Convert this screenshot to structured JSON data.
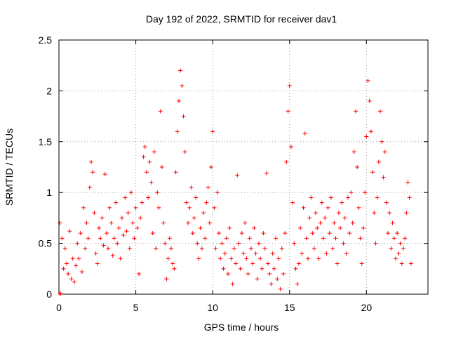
{
  "chart_data": {
    "type": "scatter",
    "title": "Day 192 of 2022, SRMTID for receiver dav1",
    "xlabel": "GPS time / hours",
    "ylabel": "SRMTID / TECUs",
    "xlim": [
      0,
      24
    ],
    "ylim": [
      0,
      2.5
    ],
    "xticks": [
      0,
      5,
      10,
      15,
      20
    ],
    "xtick_labels": [
      "0",
      "5",
      "10",
      "15",
      "20"
    ],
    "yticks": [
      0,
      0.5,
      1,
      1.5,
      2,
      2.5
    ],
    "ytick_labels": [
      "0",
      "0.5",
      "1",
      "1.5",
      "2",
      "2.5"
    ],
    "grid": true,
    "marker": "+",
    "color": "#ff0000",
    "series": [
      {
        "name": "dav1",
        "points": [
          [
            0.05,
            0.7
          ],
          [
            0.08,
            0.0
          ],
          [
            0.1,
            0.01
          ],
          [
            0.2,
            0.55
          ],
          [
            0.3,
            0.25
          ],
          [
            0.4,
            0.45
          ],
          [
            0.5,
            0.3
          ],
          [
            0.6,
            0.2
          ],
          [
            0.7,
            0.62
          ],
          [
            0.8,
            0.15
          ],
          [
            0.9,
            0.35
          ],
          [
            1.0,
            0.12
          ],
          [
            1.1,
            0.28
          ],
          [
            1.2,
            0.5
          ],
          [
            1.3,
            0.35
          ],
          [
            1.4,
            0.6
          ],
          [
            1.5,
            0.22
          ],
          [
            1.6,
            0.85
          ],
          [
            1.7,
            0.45
          ],
          [
            1.8,
            0.7
          ],
          [
            1.9,
            0.55
          ],
          [
            2.0,
            1.05
          ],
          [
            2.1,
            1.3
          ],
          [
            2.2,
            1.2
          ],
          [
            2.3,
            0.8
          ],
          [
            2.4,
            0.4
          ],
          [
            2.5,
            0.3
          ],
          [
            2.6,
            0.65
          ],
          [
            2.7,
            0.55
          ],
          [
            2.8,
            0.75
          ],
          [
            2.9,
            0.48
          ],
          [
            3.0,
            1.18
          ],
          [
            3.1,
            0.6
          ],
          [
            3.2,
            0.45
          ],
          [
            3.3,
            0.85
          ],
          [
            3.4,
            0.7
          ],
          [
            3.5,
            0.38
          ],
          [
            3.6,
            0.55
          ],
          [
            3.7,
            0.9
          ],
          [
            3.8,
            0.5
          ],
          [
            3.9,
            0.65
          ],
          [
            4.0,
            0.35
          ],
          [
            4.1,
            0.75
          ],
          [
            4.2,
            0.58
          ],
          [
            4.3,
            0.95
          ],
          [
            4.4,
            0.62
          ],
          [
            4.5,
            0.8
          ],
          [
            4.6,
            0.45
          ],
          [
            4.7,
            1.0
          ],
          [
            4.8,
            0.7
          ],
          [
            4.9,
            0.55
          ],
          [
            5.0,
            0.85
          ],
          [
            5.1,
            0.65
          ],
          [
            5.2,
            0.2
          ],
          [
            5.3,
            0.75
          ],
          [
            5.4,
            0.9
          ],
          [
            5.5,
            1.35
          ],
          [
            5.6,
            1.45
          ],
          [
            5.7,
            1.2
          ],
          [
            5.8,
            0.95
          ],
          [
            5.9,
            1.3
          ],
          [
            6.0,
            1.1
          ],
          [
            6.1,
            0.6
          ],
          [
            6.2,
            1.4
          ],
          [
            6.3,
            0.45
          ],
          [
            6.4,
            1.0
          ],
          [
            6.5,
            0.85
          ],
          [
            6.6,
            1.8
          ],
          [
            6.7,
            1.25
          ],
          [
            6.8,
            0.7
          ],
          [
            6.9,
            0.5
          ],
          [
            7.0,
            0.15
          ],
          [
            7.1,
            0.35
          ],
          [
            7.2,
            0.55
          ],
          [
            7.3,
            0.45
          ],
          [
            7.4,
            0.3
          ],
          [
            7.5,
            0.25
          ],
          [
            7.6,
            1.2
          ],
          [
            7.7,
            1.6
          ],
          [
            7.8,
            1.9
          ],
          [
            7.9,
            2.2
          ],
          [
            8.0,
            2.05
          ],
          [
            8.1,
            1.75
          ],
          [
            8.2,
            1.4
          ],
          [
            8.3,
            0.9
          ],
          [
            8.4,
            0.7
          ],
          [
            8.5,
            0.85
          ],
          [
            8.6,
            1.05
          ],
          [
            8.7,
            0.6
          ],
          [
            8.8,
            0.75
          ],
          [
            8.9,
            0.95
          ],
          [
            9.0,
            0.5
          ],
          [
            9.1,
            0.35
          ],
          [
            9.2,
            0.65
          ],
          [
            9.3,
            0.45
          ],
          [
            9.4,
            0.8
          ],
          [
            9.5,
            0.55
          ],
          [
            9.6,
            0.9
          ],
          [
            9.7,
            1.05
          ],
          [
            9.8,
            0.7
          ],
          [
            9.9,
            1.25
          ],
          [
            10.0,
            1.6
          ],
          [
            10.1,
            0.85
          ],
          [
            10.2,
            0.45
          ],
          [
            10.3,
            1.0
          ],
          [
            10.4,
            0.6
          ],
          [
            10.5,
            0.35
          ],
          [
            10.6,
            0.5
          ],
          [
            10.7,
            0.25
          ],
          [
            10.8,
            0.4
          ],
          [
            10.9,
            0.55
          ],
          [
            11.0,
            0.2
          ],
          [
            11.1,
            0.65
          ],
          [
            11.2,
            0.35
          ],
          [
            11.3,
            0.1
          ],
          [
            11.4,
            0.45
          ],
          [
            11.5,
            0.3
          ],
          [
            11.6,
            1.17
          ],
          [
            11.7,
            0.5
          ],
          [
            11.8,
            0.25
          ],
          [
            11.9,
            0.6
          ],
          [
            12.0,
            0.4
          ],
          [
            12.1,
            0.7
          ],
          [
            12.2,
            0.35
          ],
          [
            12.3,
            0.2
          ],
          [
            12.4,
            0.55
          ],
          [
            12.5,
            0.45
          ],
          [
            12.6,
            0.3
          ],
          [
            12.7,
            0.65
          ],
          [
            12.8,
            0.4
          ],
          [
            12.9,
            0.15
          ],
          [
            13.0,
            0.5
          ],
          [
            13.1,
            0.35
          ],
          [
            13.2,
            0.25
          ],
          [
            13.3,
            0.6
          ],
          [
            13.4,
            0.45
          ],
          [
            13.5,
            1.19
          ],
          [
            13.6,
            0.3
          ],
          [
            13.7,
            0.2
          ],
          [
            13.8,
            0.1
          ],
          [
            13.9,
            0.4
          ],
          [
            14.0,
            0.25
          ],
          [
            14.1,
            0.55
          ],
          [
            14.2,
            0.15
          ],
          [
            14.3,
            0.35
          ],
          [
            14.4,
            0.05
          ],
          [
            14.5,
            0.45
          ],
          [
            14.6,
            0.2
          ],
          [
            14.7,
            0.6
          ],
          [
            14.8,
            1.3
          ],
          [
            14.9,
            1.8
          ],
          [
            15.0,
            2.05
          ],
          [
            15.1,
            1.45
          ],
          [
            15.2,
            0.9
          ],
          [
            15.3,
            0.5
          ],
          [
            15.4,
            0.25
          ],
          [
            15.5,
            0.1
          ],
          [
            15.6,
            0.3
          ],
          [
            15.7,
            0.65
          ],
          [
            15.8,
            0.4
          ],
          [
            15.9,
            0.85
          ],
          [
            16.0,
            1.58
          ],
          [
            16.1,
            0.55
          ],
          [
            16.2,
            0.35
          ],
          [
            16.3,
            0.75
          ],
          [
            16.4,
            0.95
          ],
          [
            16.5,
            0.6
          ],
          [
            16.6,
            0.45
          ],
          [
            16.7,
            0.8
          ],
          [
            16.8,
            0.65
          ],
          [
            16.9,
            0.35
          ],
          [
            17.0,
            0.7
          ],
          [
            17.1,
            0.9
          ],
          [
            17.2,
            0.55
          ],
          [
            17.3,
            0.75
          ],
          [
            17.4,
            0.4
          ],
          [
            17.5,
            0.85
          ],
          [
            17.6,
            0.6
          ],
          [
            17.7,
            0.95
          ],
          [
            17.8,
            0.45
          ],
          [
            17.9,
            0.7
          ],
          [
            18.0,
            0.55
          ],
          [
            18.1,
            0.3
          ],
          [
            18.2,
            0.8
          ],
          [
            18.3,
            0.65
          ],
          [
            18.4,
            0.9
          ],
          [
            18.5,
            0.5
          ],
          [
            18.6,
            0.75
          ],
          [
            18.7,
            0.4
          ],
          [
            18.8,
            0.95
          ],
          [
            18.9,
            0.6
          ],
          [
            19.0,
            1.0
          ],
          [
            19.1,
            0.7
          ],
          [
            19.2,
            1.4
          ],
          [
            19.3,
            1.8
          ],
          [
            19.4,
            1.25
          ],
          [
            19.5,
            0.85
          ],
          [
            19.6,
            0.55
          ],
          [
            19.7,
            0.3
          ],
          [
            19.8,
            0.65
          ],
          [
            19.9,
            1.0
          ],
          [
            20.0,
            1.55
          ],
          [
            20.1,
            2.1
          ],
          [
            20.2,
            1.9
          ],
          [
            20.3,
            1.6
          ],
          [
            20.4,
            1.2
          ],
          [
            20.5,
            0.8
          ],
          [
            20.6,
            0.5
          ],
          [
            20.7,
            0.95
          ],
          [
            20.8,
            1.3
          ],
          [
            20.9,
            1.8
          ],
          [
            21.0,
            1.5
          ],
          [
            21.1,
            1.15
          ],
          [
            21.2,
            1.4
          ],
          [
            21.3,
            0.9
          ],
          [
            21.4,
            0.6
          ],
          [
            21.5,
            0.8
          ],
          [
            21.6,
            0.45
          ],
          [
            21.7,
            0.7
          ],
          [
            21.8,
            0.55
          ],
          [
            21.9,
            0.35
          ],
          [
            22.0,
            0.6
          ],
          [
            22.1,
            0.4
          ],
          [
            22.2,
            0.5
          ],
          [
            22.3,
            0.3
          ],
          [
            22.4,
            0.45
          ],
          [
            22.5,
            0.55
          ],
          [
            22.6,
            0.8
          ],
          [
            22.7,
            1.1
          ],
          [
            22.8,
            0.95
          ],
          [
            22.9,
            0.3
          ]
        ]
      }
    ]
  }
}
